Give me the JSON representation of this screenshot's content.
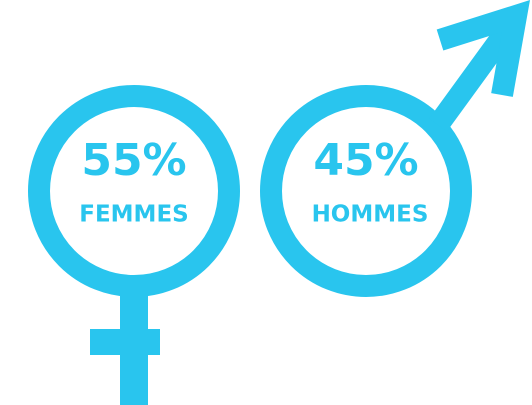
{
  "female": {
    "percent": "55%",
    "label": "FEMMES"
  },
  "male": {
    "percent": "45%",
    "label": "HOMMES"
  }
}
